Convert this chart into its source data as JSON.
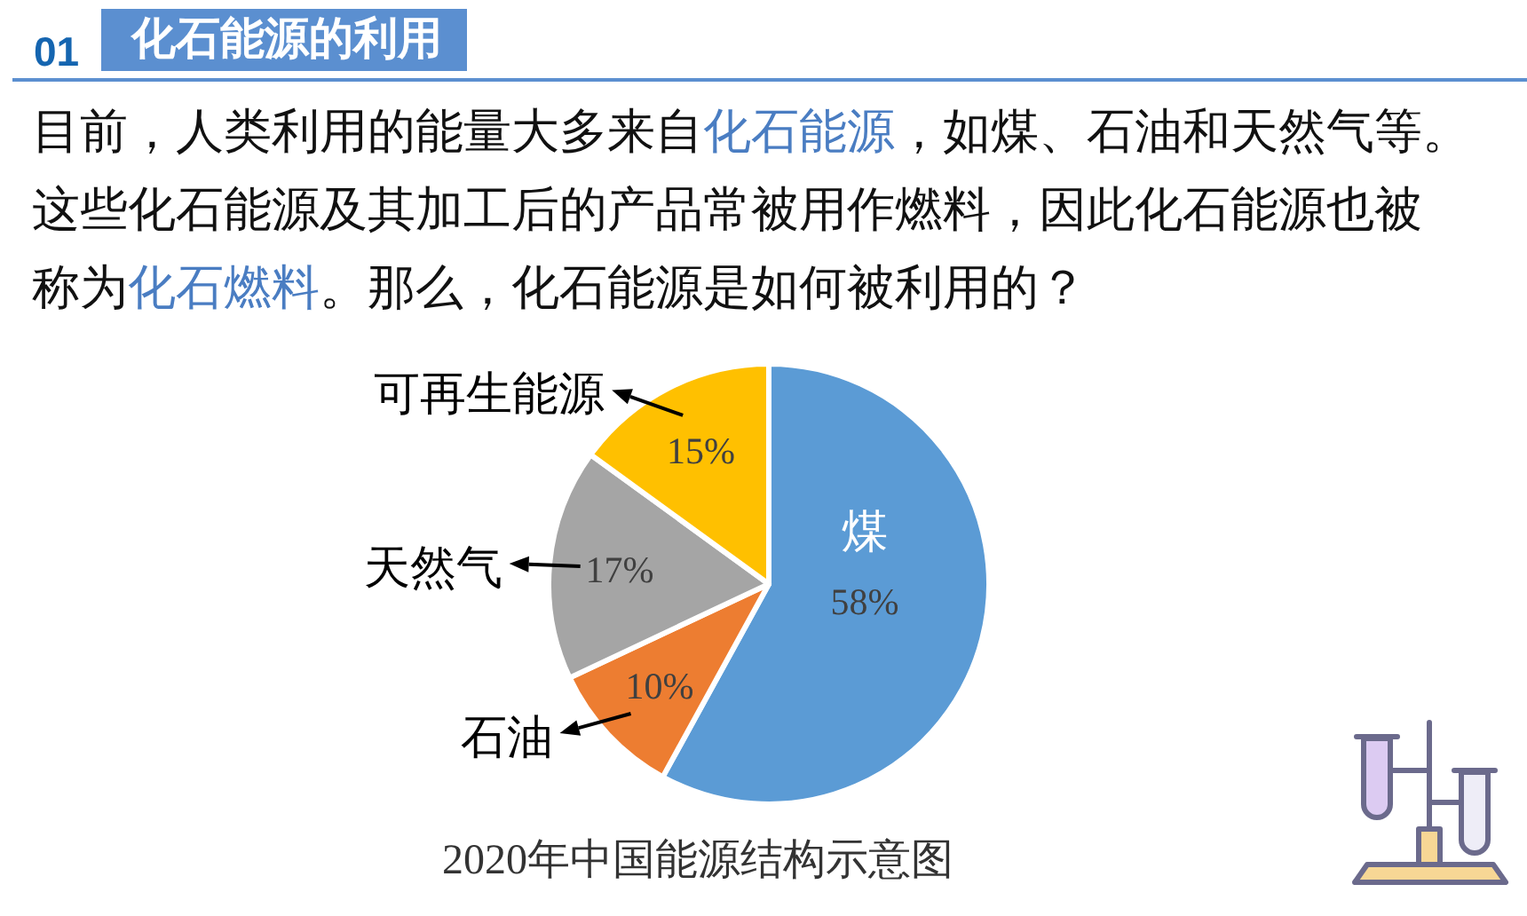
{
  "chart_data": {
    "type": "pie",
    "title": "化石能源的利用",
    "categories": [
      "煤",
      "石油",
      "天然气",
      "可再生能源"
    ],
    "values": [
      58,
      10,
      17,
      15
    ],
    "colors": [
      "#5b9bd5",
      "#ed7d31",
      "#a5a5a5",
      "#ffc000"
    ],
    "value_labels": [
      "58%",
      "10%",
      "17%",
      "15%"
    ],
    "annotations": [
      "01",
      "目前，人类利用的能量大多来自",
      "化石能源",
      "，如煤、石油和天然气等。",
      "这些化石能源及其加工后的产品常被用作燃料，因此化石能源也被",
      "称为",
      "化石燃料",
      "。那么，化石能源是如何被利用的？",
      "2020年中国能源结构示意图"
    ]
  }
}
